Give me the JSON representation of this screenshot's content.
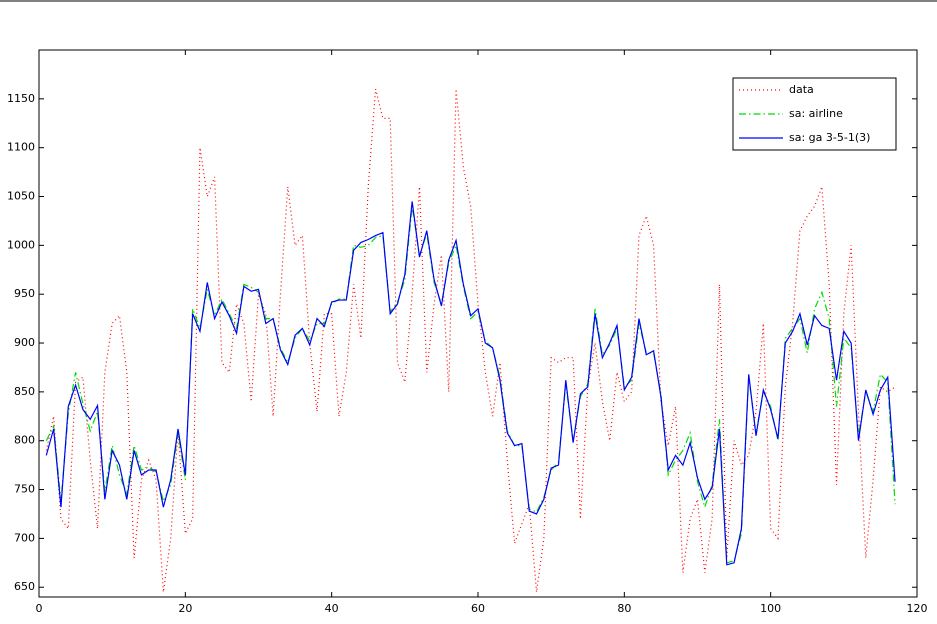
{
  "chart_data": {
    "type": "line",
    "x": [
      1,
      2,
      3,
      4,
      5,
      6,
      7,
      8,
      9,
      10,
      11,
      12,
      13,
      14,
      15,
      16,
      17,
      18,
      19,
      20,
      21,
      22,
      23,
      24,
      25,
      26,
      27,
      28,
      29,
      30,
      31,
      32,
      33,
      34,
      35,
      36,
      37,
      38,
      39,
      40,
      41,
      42,
      43,
      44,
      45,
      46,
      47,
      48,
      49,
      50,
      51,
      52,
      53,
      54,
      55,
      56,
      57,
      58,
      59,
      60,
      61,
      62,
      63,
      64,
      65,
      66,
      67,
      68,
      69,
      70,
      71,
      72,
      73,
      74,
      75,
      76,
      77,
      78,
      79,
      80,
      81,
      82,
      83,
      84,
      85,
      86,
      87,
      88,
      89,
      90,
      91,
      92,
      93,
      94,
      95,
      96,
      97,
      98,
      99,
      100,
      101,
      102,
      103,
      104,
      105,
      106,
      107,
      108,
      109,
      110,
      111,
      112,
      113,
      114,
      115,
      116,
      117
    ],
    "series": [
      {
        "name": "data",
        "color": "#ff0000",
        "dash": "dotted",
        "values": [
          790,
          825,
          720,
          710,
          860,
          865,
          780,
          710,
          870,
          920,
          928,
          870,
          680,
          760,
          780,
          760,
          645,
          700,
          810,
          705,
          720,
          1100,
          1050,
          1070,
          880,
          870,
          940,
          920,
          840,
          950,
          930,
          825,
          950,
          1060,
          1000,
          1010,
          900,
          830,
          930,
          930,
          825,
          870,
          960,
          905,
          1060,
          1160,
          1130,
          1130,
          880,
          860,
          950,
          1060,
          870,
          940,
          990,
          850,
          1160,
          1080,
          1040,
          940,
          870,
          825,
          880,
          780,
          695,
          715,
          735,
          645,
          700,
          885,
          880,
          885,
          885,
          720,
          855,
          900,
          840,
          800,
          870,
          840,
          850,
          1010,
          1030,
          1000,
          840,
          795,
          835,
          665,
          720,
          740,
          665,
          720,
          960,
          680,
          800,
          775,
          785,
          830,
          920,
          710,
          700,
          855,
          920,
          1015,
          1030,
          1040,
          1060,
          960,
          755,
          930,
          1000,
          830,
          680,
          760,
          855,
          850,
          855
        ]
      },
      {
        "name": "sa: airline",
        "color": "#00dd00",
        "dash": "dashdot",
        "values": [
          800,
          815,
          738,
          828,
          870,
          838,
          810,
          830,
          748,
          795,
          765,
          745,
          795,
          770,
          773,
          768,
          738,
          755,
          808,
          760,
          935,
          915,
          955,
          928,
          945,
          930,
          915,
          960,
          957,
          952,
          925,
          925,
          895,
          880,
          905,
          915,
          902,
          920,
          920,
          940,
          945,
          945,
          1000,
          998,
          1000,
          1008,
          1010,
          932,
          942,
          965,
          1040,
          990,
          1012,
          962,
          940,
          982,
          1000,
          958,
          925,
          932,
          902,
          895,
          865,
          810,
          795,
          795,
          730,
          727,
          742,
          770,
          778,
          858,
          800,
          845,
          858,
          935,
          888,
          898,
          915,
          855,
          862,
          920,
          890,
          890,
          848,
          765,
          780,
          790,
          808,
          758,
          732,
          755,
          822,
          675,
          677,
          705,
          865,
          808,
          850,
          835,
          800,
          905,
          915,
          925,
          890,
          935,
          952,
          925,
          835,
          905,
          895,
          805,
          850,
          830,
          868,
          860,
          735
        ]
      },
      {
        "name": "sa: ga 3-5-1(3)",
        "color": "#0000ff",
        "dash": "solid",
        "values": [
          785,
          812,
          732,
          835,
          857,
          832,
          822,
          836,
          740,
          790,
          775,
          740,
          790,
          765,
          770,
          770,
          732,
          760,
          812,
          765,
          930,
          912,
          962,
          925,
          942,
          928,
          910,
          958,
          953,
          955,
          920,
          925,
          893,
          878,
          908,
          915,
          898,
          925,
          917,
          942,
          944,
          944,
          995,
          1003,
          1006,
          1010,
          1013,
          930,
          940,
          970,
          1045,
          988,
          1015,
          965,
          938,
          985,
          1005,
          960,
          928,
          935,
          900,
          895,
          862,
          808,
          795,
          797,
          728,
          725,
          740,
          772,
          775,
          862,
          798,
          848,
          855,
          930,
          885,
          900,
          918,
          852,
          865,
          925,
          888,
          892,
          845,
          770,
          785,
          775,
          798,
          762,
          740,
          752,
          812,
          673,
          675,
          710,
          868,
          805,
          852,
          832,
          802,
          900,
          912,
          930,
          898,
          928,
          918,
          915,
          862,
          912,
          900,
          800,
          852,
          827,
          852,
          865,
          758
        ]
      }
    ],
    "xlim": [
      0,
      120
    ],
    "xticks": [
      0,
      20,
      40,
      60,
      80,
      100,
      120
    ],
    "ylim": [
      640,
      1200
    ],
    "yticks": [
      650,
      700,
      750,
      800,
      850,
      900,
      950,
      1000,
      1050,
      1100,
      1150
    ],
    "legend": "top-right"
  }
}
